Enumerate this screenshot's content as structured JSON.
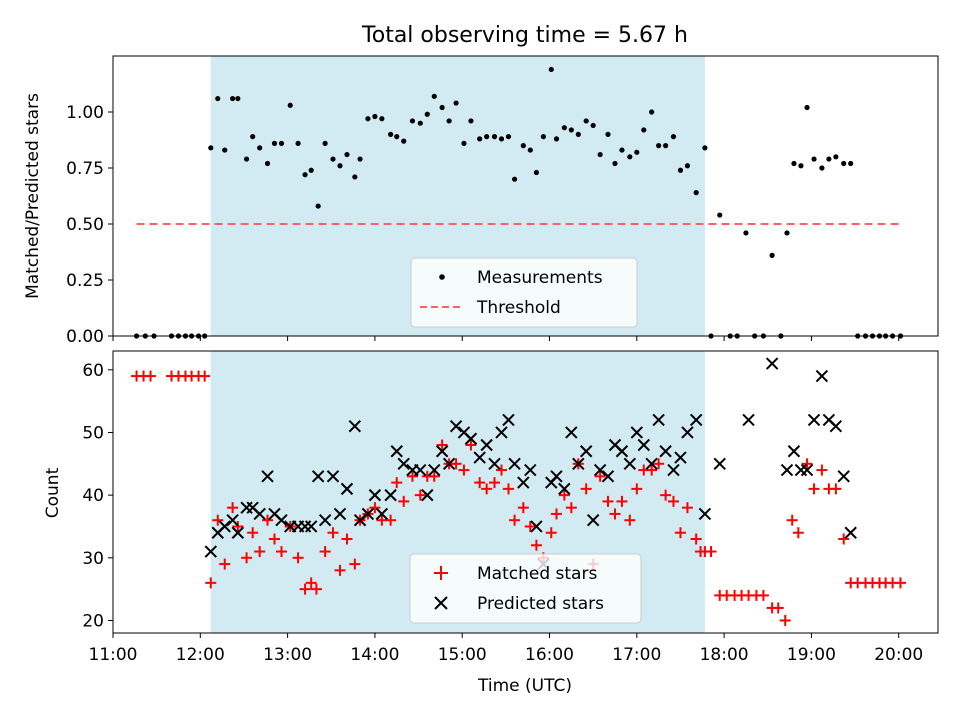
{
  "figure": {
    "title": "Total observing time = 5.67 h"
  },
  "chart_data": [
    {
      "type": "scatter",
      "panel": "top",
      "ylabel": "Matched/Predicted stars",
      "xlabel": "",
      "xlim": [
        11.0,
        20.45
      ],
      "ylim": [
        0,
        1.25
      ],
      "y_ticks": [
        "0.00",
        "0.25",
        "0.50",
        "0.75",
        "1.00"
      ],
      "y_tick_values": [
        0,
        0.25,
        0.5,
        0.75,
        1.0
      ],
      "x_ticks": [
        11,
        12,
        13,
        14,
        15,
        16,
        17,
        18,
        19,
        20
      ],
      "highlight_band": {
        "x_start": 12.12,
        "x_end": 17.78,
        "color": "#add8e6"
      },
      "legend": {
        "placement": "lower center",
        "items": [
          "Measurements",
          "Threshold"
        ]
      },
      "series": [
        {
          "name": "Measurements",
          "marker": "dot",
          "color": "#000000",
          "x": [
            11.27,
            11.37,
            11.47,
            11.67,
            11.75,
            11.83,
            11.9,
            11.98,
            12.05,
            12.12,
            12.2,
            12.28,
            12.37,
            12.43,
            12.53,
            12.6,
            12.68,
            12.77,
            12.85,
            12.93,
            13.03,
            13.12,
            13.2,
            13.27,
            13.35,
            13.43,
            13.52,
            13.6,
            13.68,
            13.77,
            13.83,
            13.92,
            14.0,
            14.08,
            14.18,
            14.25,
            14.33,
            14.43,
            14.52,
            14.6,
            14.68,
            14.77,
            14.85,
            14.93,
            15.02,
            15.1,
            15.2,
            15.28,
            15.37,
            15.45,
            15.53,
            15.6,
            15.7,
            15.78,
            15.85,
            15.93,
            16.02,
            16.08,
            16.17,
            16.25,
            16.33,
            16.42,
            16.5,
            16.58,
            16.67,
            16.75,
            16.83,
            16.92,
            17.0,
            17.08,
            17.17,
            17.25,
            17.33,
            17.42,
            17.5,
            17.58,
            17.68,
            17.78,
            17.85,
            17.95,
            18.07,
            18.15,
            18.25,
            18.35,
            18.45,
            18.55,
            18.65,
            18.72,
            18.8,
            18.88,
            18.95,
            19.03,
            19.12,
            19.2,
            19.28,
            19.37,
            19.45,
            19.53,
            19.62,
            19.7,
            19.78,
            19.85,
            19.93,
            20.02
          ],
          "y": [
            0,
            0,
            0,
            0,
            0,
            0,
            0,
            0,
            0,
            0.84,
            1.06,
            0.83,
            1.06,
            1.06,
            0.79,
            0.89,
            0.84,
            0.77,
            0.86,
            0.86,
            1.03,
            0.86,
            0.72,
            0.74,
            0.58,
            0.86,
            0.79,
            0.76,
            0.81,
            0.71,
            0.79,
            0.97,
            0.98,
            0.97,
            0.9,
            0.89,
            0.87,
            0.96,
            0.95,
            0.99,
            1.07,
            1.02,
            0.96,
            1.04,
            0.86,
            0.96,
            0.88,
            0.89,
            0.89,
            0.88,
            0.89,
            0.7,
            0.85,
            0.83,
            0.73,
            0.89,
            1.19,
            0.88,
            0.93,
            0.92,
            0.9,
            0.96,
            0.94,
            0.81,
            0.9,
            0.77,
            0.83,
            0.8,
            0.82,
            0.92,
            1.0,
            0.85,
            0.85,
            0.89,
            0.74,
            0.76,
            0.64,
            0.84,
            0,
            0.54,
            0,
            0,
            0.46,
            0,
            0,
            0.36,
            0,
            0.46,
            0.77,
            0.76,
            1.02,
            0.79,
            0.75,
            0.79,
            0.8,
            0.77,
            0.77,
            0,
            0,
            0,
            0,
            0,
            0,
            0
          ]
        },
        {
          "name": "Threshold",
          "marker": "dashed-line",
          "color": "#ff6060",
          "x": [
            11.27,
            20.02
          ],
          "y": [
            0.5,
            0.5
          ]
        }
      ]
    },
    {
      "type": "scatter",
      "panel": "bottom",
      "xlabel": "Time (UTC)",
      "ylabel": "Count",
      "xlim": [
        11.0,
        20.45
      ],
      "ylim": [
        18,
        63
      ],
      "y_ticks": [
        "20",
        "30",
        "40",
        "50",
        "60"
      ],
      "y_tick_values": [
        20,
        30,
        40,
        50,
        60
      ],
      "x_ticks": [
        "11:00",
        "12:00",
        "13:00",
        "14:00",
        "15:00",
        "16:00",
        "17:00",
        "18:00",
        "19:00",
        "20:00"
      ],
      "x_tick_values": [
        11,
        12,
        13,
        14,
        15,
        16,
        17,
        18,
        19,
        20
      ],
      "highlight_band": {
        "x_start": 12.12,
        "x_end": 17.78,
        "color": "#add8e6"
      },
      "legend": {
        "placement": "lower center",
        "items": [
          "Matched stars",
          "Predicted stars"
        ]
      },
      "series": [
        {
          "name": "Matched stars",
          "marker": "plus",
          "color": "#ff0000",
          "x": [
            11.27,
            11.35,
            11.43,
            11.67,
            11.75,
            11.83,
            11.9,
            11.98,
            12.05,
            12.12,
            12.2,
            12.28,
            12.37,
            12.43,
            12.53,
            12.6,
            12.68,
            12.77,
            12.85,
            12.93,
            13.03,
            13.12,
            13.2,
            13.27,
            13.33,
            13.43,
            13.52,
            13.6,
            13.68,
            13.77,
            13.83,
            13.92,
            14.0,
            14.08,
            14.18,
            14.25,
            14.33,
            14.43,
            14.52,
            14.6,
            14.68,
            14.77,
            14.85,
            14.93,
            15.02,
            15.1,
            15.2,
            15.28,
            15.37,
            15.45,
            15.53,
            15.6,
            15.7,
            15.78,
            15.85,
            15.93,
            16.02,
            16.08,
            16.17,
            16.25,
            16.33,
            16.42,
            16.5,
            16.58,
            16.67,
            16.75,
            16.83,
            16.92,
            17.0,
            17.08,
            17.17,
            17.25,
            17.33,
            17.42,
            17.5,
            17.58,
            17.68,
            17.73,
            17.78,
            17.85,
            17.95,
            18.03,
            18.12,
            18.2,
            18.28,
            18.37,
            18.45,
            18.55,
            18.62,
            18.7,
            18.78,
            18.85,
            18.95,
            19.03,
            19.12,
            19.2,
            19.28,
            19.37,
            19.45,
            19.53,
            19.62,
            19.7,
            19.78,
            19.85,
            19.93,
            20.02
          ],
          "y": [
            59,
            59,
            59,
            59,
            59,
            59,
            59,
            59,
            59,
            26,
            36,
            29,
            38,
            35,
            30,
            34,
            31,
            36,
            33,
            31,
            35,
            30,
            25,
            26,
            25,
            31,
            34,
            28,
            33,
            29,
            36,
            37,
            38,
            36,
            36,
            42,
            39,
            43,
            40,
            43,
            43,
            48,
            45,
            45,
            44,
            48,
            42,
            41,
            42,
            44,
            41,
            36,
            38,
            35,
            32,
            30,
            34,
            37,
            40,
            38,
            45,
            41,
            29,
            43,
            39,
            37,
            39,
            36,
            41,
            44,
            44,
            45,
            40,
            39,
            34,
            38,
            33,
            31,
            31,
            31,
            24,
            24,
            24,
            24,
            24,
            24,
            24,
            22,
            22,
            20,
            36,
            34,
            45,
            41,
            44,
            41,
            41,
            33,
            26,
            26,
            26,
            26,
            26,
            26,
            26,
            26
          ]
        },
        {
          "name": "Predicted stars",
          "marker": "x",
          "color": "#000000",
          "x": [
            12.12,
            12.2,
            12.28,
            12.37,
            12.43,
            12.53,
            12.6,
            12.68,
            12.77,
            12.85,
            12.93,
            13.03,
            13.12,
            13.2,
            13.27,
            13.35,
            13.43,
            13.52,
            13.6,
            13.68,
            13.77,
            13.83,
            13.92,
            14.0,
            14.08,
            14.18,
            14.25,
            14.33,
            14.43,
            14.52,
            14.6,
            14.68,
            14.77,
            14.85,
            14.93,
            15.02,
            15.1,
            15.2,
            15.28,
            15.37,
            15.45,
            15.53,
            15.6,
            15.7,
            15.78,
            15.85,
            15.93,
            16.02,
            16.08,
            16.17,
            16.25,
            16.33,
            16.42,
            16.5,
            16.58,
            16.67,
            16.75,
            16.83,
            16.92,
            17.0,
            17.08,
            17.17,
            17.25,
            17.33,
            17.42,
            17.5,
            17.58,
            17.68,
            17.78,
            17.95,
            18.28,
            18.55,
            18.72,
            18.8,
            18.88,
            18.95,
            19.03,
            19.12,
            19.2,
            19.28,
            19.37,
            19.45
          ],
          "y": [
            31,
            34,
            35,
            36,
            34,
            38,
            38,
            37,
            43,
            37,
            36,
            35,
            35,
            35,
            35,
            43,
            36,
            43,
            37,
            41,
            51,
            36,
            37,
            40,
            37,
            40,
            47,
            45,
            44,
            44,
            40,
            44,
            47,
            45,
            51,
            50,
            49,
            46,
            48,
            45,
            50,
            52,
            45,
            42,
            44,
            35,
            29,
            42,
            43,
            41,
            50,
            45,
            47,
            36,
            44,
            43,
            48,
            47,
            45,
            50,
            48,
            45,
            52,
            47,
            44,
            46,
            50,
            52,
            37,
            45,
            52,
            61,
            44,
            47,
            44,
            44,
            52,
            59,
            52,
            51,
            43,
            34
          ]
        }
      ]
    }
  ]
}
